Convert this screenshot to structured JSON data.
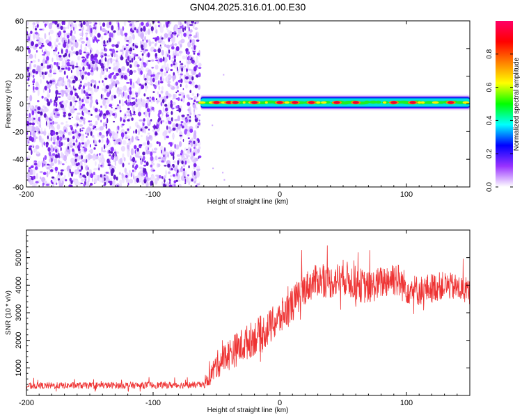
{
  "chart_data": [
    {
      "type": "heatmap",
      "title": "GN04.2025.316.01.00.E30",
      "xlabel": "Height of straight line (km)",
      "ylabel": "Frequency (Hz)",
      "xlim": [
        -200,
        150
      ],
      "ylim": [
        -60,
        60
      ],
      "xticks": [
        -200,
        -100,
        0,
        100
      ],
      "xtick_labels": [
        "-200",
        "-100",
        "0",
        "100"
      ],
      "yticks": [
        -60,
        -40,
        -20,
        0,
        20,
        40,
        60
      ],
      "ytick_labels": [
        "-60",
        "-40",
        "-20",
        "0",
        "20",
        "40",
        "60"
      ],
      "noise_region_x": [
        -200,
        -63
      ],
      "signal_band_hz": [
        -2,
        4
      ],
      "signal_peak_x": [
        -50,
        -40,
        -35,
        -20,
        0,
        12,
        25,
        45,
        60,
        90,
        105,
        135
      ],
      "colorbar": {
        "label": "Normalized spectral amplitude",
        "range": [
          0,
          1
        ],
        "ticks": [
          0.0,
          0.2,
          0.4,
          0.6,
          0.8
        ],
        "tick_labels": [
          "0.0",
          "0.2",
          "0.4",
          "0.6",
          "0.8"
        ],
        "colormap": [
          "#ffffff",
          "#9933ff",
          "#0000ff",
          "#00ffff",
          "#00ff00",
          "#ffff00",
          "#ff8000",
          "#ff0000",
          "#ff0066"
        ]
      }
    },
    {
      "type": "line",
      "xlabel": "Height of straight line (km)",
      "ylabel": "SNR (10 * v/v)",
      "xlim": [
        -200,
        150
      ],
      "ylim": [
        0,
        6000
      ],
      "xticks": [
        -200,
        -100,
        0,
        100
      ],
      "xtick_labels": [
        "-200",
        "-100",
        "0",
        "100"
      ],
      "yticks": [
        1000,
        2000,
        3000,
        4000,
        5000
      ],
      "ytick_labels": [
        "1000",
        "2000",
        "3000",
        "4000",
        "5000"
      ],
      "color": "#ee3333",
      "series": [
        {
          "name": "SNR",
          "trend_x": [
            -200,
            -60,
            -55,
            -50,
            -40,
            -30,
            -20,
            -10,
            0,
            10,
            20,
            30,
            40,
            50,
            60,
            70,
            80,
            90,
            100,
            110,
            120,
            130,
            140,
            150
          ],
          "trend_y": [
            350,
            380,
            700,
            1100,
            1500,
            1800,
            2100,
            2400,
            2800,
            3300,
            3900,
            4200,
            4100,
            4300,
            4050,
            3900,
            4100,
            4300,
            3900,
            3800,
            3900,
            4000,
            3900,
            3750
          ],
          "noise_amplitude": [
            120,
            120,
            350,
            500,
            600,
            650,
            650,
            650,
            650,
            650,
            600,
            600,
            600,
            650,
            650,
            600,
            600,
            700,
            600,
            550,
            550,
            500,
            500,
            500
          ]
        }
      ]
    }
  ]
}
